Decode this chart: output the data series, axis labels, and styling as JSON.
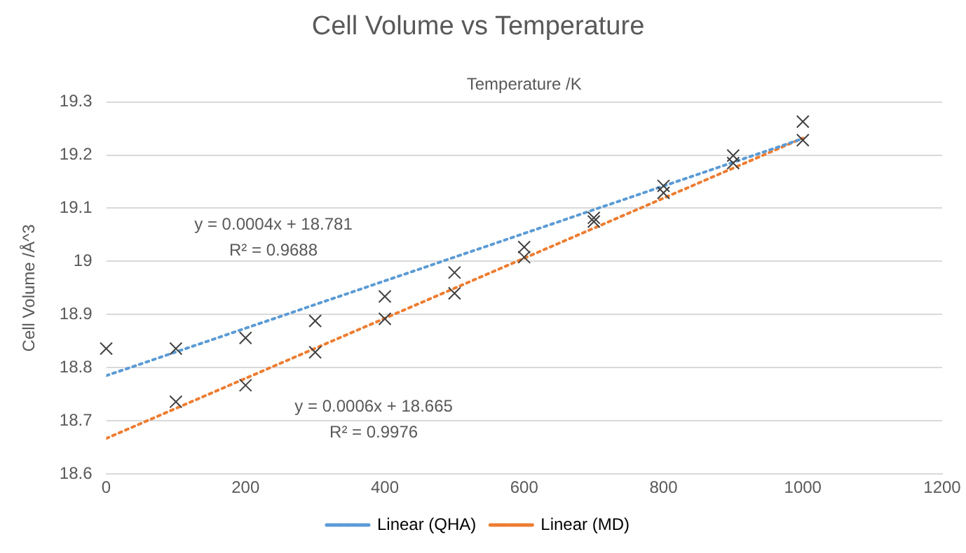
{
  "chart_data": {
    "type": "scatter",
    "title": "Cell Volume vs Temperature",
    "xlabel": "Temperature /K",
    "ylabel": "Cell Volume /Å^3",
    "x": [
      0,
      100,
      200,
      300,
      400,
      500,
      600,
      700,
      800,
      900,
      1000
    ],
    "series": [
      {
        "type": "scatter",
        "color": "#404040",
        "marker": "cross",
        "values": [
          18.836,
          18.836,
          18.856,
          18.888,
          18.934,
          18.979,
          19.027,
          19.082,
          19.142,
          19.199,
          19.263
        ]
      },
      {
        "type": "scatter",
        "color": "#404040",
        "marker": "cross",
        "x": [
          100,
          200,
          300,
          400,
          500,
          600,
          700,
          800,
          900,
          1000
        ],
        "values": [
          18.736,
          18.767,
          18.829,
          18.892,
          18.94,
          19.008,
          19.075,
          19.129,
          19.185,
          19.228
        ]
      },
      {
        "type": "line",
        "name": "Linear (QHA)",
        "color": "#5b9bd5",
        "line_style": "dotted",
        "marker": "none",
        "x": [
          0,
          1000
        ],
        "values": [
          18.785,
          19.231
        ]
      },
      {
        "type": "line",
        "name": "Linear (MD)",
        "color": "#ed7d31",
        "line_style": "dotted",
        "marker": "none",
        "x": [
          0,
          1000
        ],
        "values": [
          18.667,
          19.232
        ]
      }
    ],
    "xlim": [
      0,
      1200
    ],
    "xticks": [
      0,
      200,
      400,
      600,
      800,
      1000,
      1200
    ],
    "ylim": [
      18.6,
      19.3
    ],
    "yticks": [
      18.6,
      18.7,
      18.8,
      18.9,
      19,
      19.1,
      19.2,
      19.3
    ],
    "grid": "y",
    "legend": "bottom",
    "annotations": [
      "y = 0.0004x + 18.781",
      "R² = 0.9688",
      "y = 0.0006x + 18.665",
      "R² = 0.9976"
    ]
  }
}
